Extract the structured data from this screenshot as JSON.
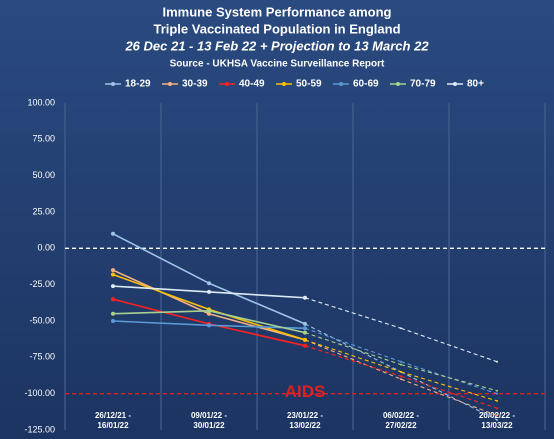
{
  "chart_data": {
    "type": "line",
    "title": [
      "Immune System Performance among",
      "Triple Vaccinated Population in England"
    ],
    "subtitle": "26 Dec 21 - 13 Feb 22 + Projection to 13 March 22",
    "source": "Source - UKHSA Vaccine Surveillance Report",
    "categories": [
      [
        "26/12/21 -",
        "16/01/22"
      ],
      [
        "09/01/22 -",
        "30/01/22"
      ],
      [
        "23/01/22 -",
        "13/02/22"
      ],
      [
        "06/02/22 -",
        "27/02/22"
      ],
      [
        "20/02/22 -",
        "13/03/22"
      ]
    ],
    "series": [
      {
        "name": "18-29",
        "color": "#9dc3e6",
        "values": [
          10,
          -24,
          -52,
          -85,
          -118
        ]
      },
      {
        "name": "30-39",
        "color": "#f4b183",
        "values": [
          -15,
          -45,
          -63,
          -90,
          -115
        ]
      },
      {
        "name": "40-49",
        "color": "#ff2020",
        "values": [
          -35,
          -52,
          -67,
          -88,
          -110
        ]
      },
      {
        "name": "50-59",
        "color": "#ffc000",
        "values": [
          -18,
          -42,
          -63,
          -85,
          -105
        ]
      },
      {
        "name": "60-69",
        "color": "#5b9bd5",
        "values": [
          -50,
          -53,
          -55,
          -78,
          -100
        ]
      },
      {
        "name": "70-79",
        "color": "#a9d18e",
        "values": [
          -45,
          -43,
          -58,
          -80,
          -98
        ]
      },
      {
        "name": "80+",
        "color": "#deebf7",
        "values": [
          -26,
          -30,
          -34,
          -55,
          -78
        ]
      }
    ],
    "ylim": [
      -125,
      100
    ],
    "yticks": [
      {
        "value": -125,
        "label": "-125.00"
      },
      {
        "value": -100,
        "label": "-100.00"
      },
      {
        "value": -75,
        "label": "-75.00"
      },
      {
        "value": -50,
        "label": "-50.00"
      },
      {
        "value": -25,
        "label": "-25.00"
      },
      {
        "value": 0,
        "label": "0.00"
      },
      {
        "value": 25,
        "label": "25.00"
      },
      {
        "value": 50,
        "label": "50.00"
      },
      {
        "value": 75,
        "label": "75.00"
      },
      {
        "value": 100,
        "label": "100.00"
      }
    ],
    "reference_lines": [
      {
        "value": 0,
        "color": "#ffffff"
      },
      {
        "value": -100,
        "color": "#e02020",
        "label": "AIDS"
      }
    ]
  }
}
